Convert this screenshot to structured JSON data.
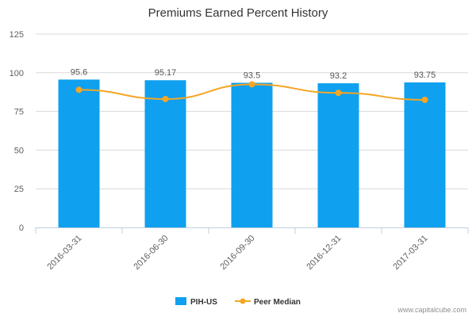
{
  "chart_data": {
    "type": "bar",
    "title": "Premiums Earned Percent History",
    "categories": [
      "2016-03-31",
      "2016-06-30",
      "2016-09-30",
      "2016-12-31",
      "2017-03-31"
    ],
    "series": [
      {
        "name": "PIH-US",
        "type": "bar",
        "color": "#0fa0ef",
        "values": [
          95.6,
          95.17,
          93.5,
          93.2,
          93.75
        ],
        "labels": [
          "95.6",
          "95.17",
          "93.5",
          "93.2",
          "93.75"
        ]
      },
      {
        "name": "Peer Median",
        "type": "line",
        "color": "#f5a623",
        "values": [
          89,
          83,
          92.5,
          87,
          82.5
        ]
      }
    ],
    "yticks": [
      "0",
      "25",
      "50",
      "75",
      "100",
      "125"
    ],
    "ylim": [
      0,
      125
    ],
    "grid": true,
    "legend": "bottom-center"
  },
  "credit": "www.capitalcube.com"
}
